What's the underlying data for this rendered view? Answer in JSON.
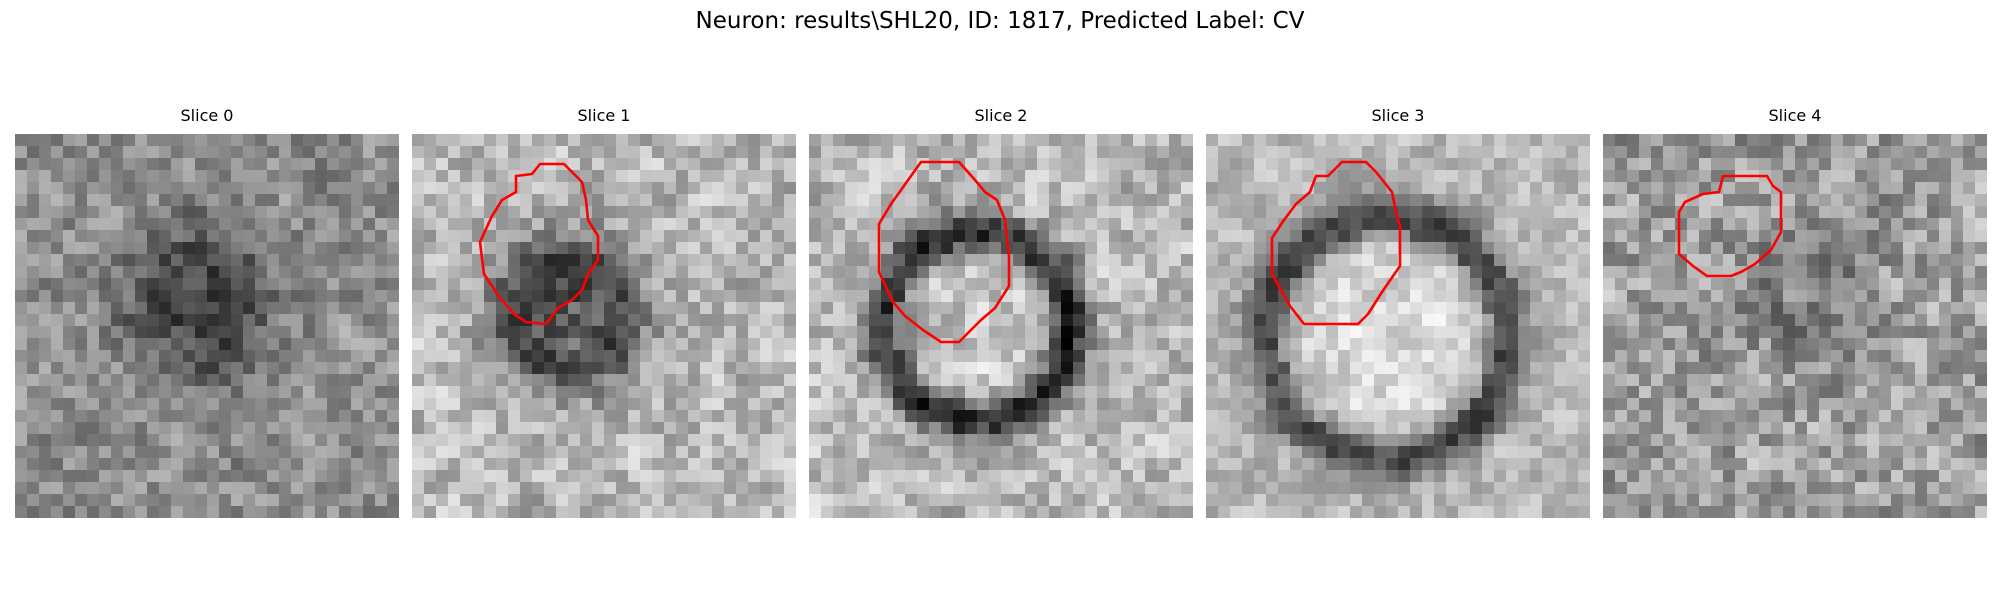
{
  "figure": {
    "title": "Neuron: results\\SHL20, ID: 1817, Predicted Label: CV"
  },
  "panels": [
    {
      "title": "Slice 0",
      "has_contour": false
    },
    {
      "title": "Slice 1",
      "has_contour": true
    },
    {
      "title": "Slice 2",
      "has_contour": true
    },
    {
      "title": "Slice 3",
      "has_contour": true
    },
    {
      "title": "Slice 4",
      "has_contour": true
    }
  ],
  "colors": {
    "contour": "#ff0000",
    "background": "#ffffff"
  }
}
